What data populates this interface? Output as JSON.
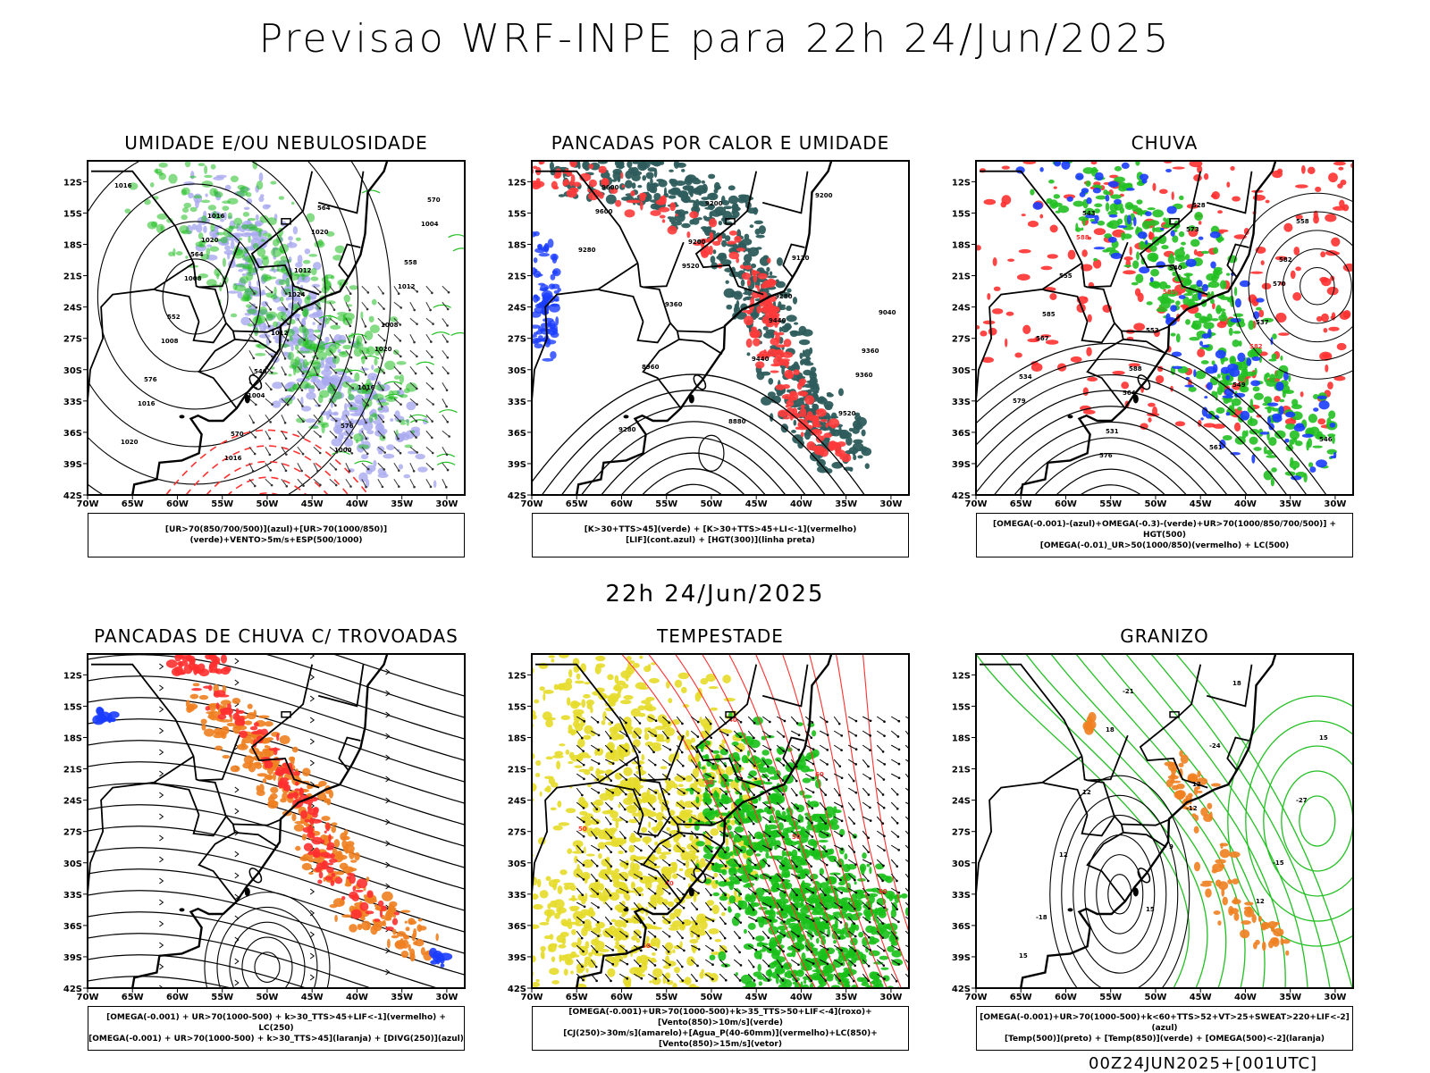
{
  "header": {
    "main_title": "Previsao WRF-INPE  para 22h 24/Jun/2025",
    "middle_title": "22h 24/Jun/2025",
    "footer": "00Z24JUN2025+[001UTC]"
  },
  "axes": {
    "lat_labels": [
      "12S",
      "15S",
      "18S",
      "21S",
      "24S",
      "27S",
      "30S",
      "33S",
      "36S",
      "39S",
      "42S"
    ],
    "lon_labels": [
      "70W",
      "65W",
      "60W",
      "55W",
      "50W",
      "45W",
      "40W",
      "35W",
      "30W"
    ],
    "lat_range": [
      -42,
      -10
    ],
    "lon_range": [
      -70,
      -28
    ]
  },
  "chart_data": [
    {
      "type": "map",
      "title": "UMIDADE E/OU NEBULOSIDADE",
      "legend": [
        "[UR>70(850/700/500)](azul)+[UR>70(1000/850)](verde)+VENTO>5m/s+ESP(500/1000)"
      ],
      "contour_labels": [
        "1016",
        "1020",
        "1024",
        "1020",
        "1016",
        "1016",
        "1020",
        "1012",
        "1008",
        "1004",
        "1000",
        "1004",
        "1008",
        "1012",
        "1016",
        "1020",
        "1016",
        "1012",
        "1008",
        "576",
        "570",
        "564",
        "558",
        "552",
        "546",
        "576",
        "570",
        "564"
      ],
      "colors": {
        "blue_fill": "#a9a9f0",
        "green": "#22c022",
        "red": "#ff3030"
      }
    },
    {
      "type": "map",
      "title": "PANCADAS POR CALOR E UMIDADE",
      "legend": [
        "[K>30+TTS>45](verde) + [K>30+TTS>45+LI<-1](vermelho)",
        "[LIF](cont.azul) + [HGT(300)](linha preta)"
      ],
      "contour_labels": [
        "9600",
        "9520",
        "9440",
        "9360",
        "9280",
        "9200",
        "9120",
        "9040",
        "8960",
        "8880",
        "9200",
        "9280",
        "9360",
        "9440",
        "9520",
        "9600",
        "9200",
        "9280",
        "9360"
      ],
      "colors": {
        "teal_fill": "#2e5c5c",
        "red_fill": "#ff3a3a",
        "blue": "#1a3cff"
      }
    },
    {
      "type": "map",
      "title": "CHUVA",
      "legend": [
        "[OMEGA(-0.001)-(azul)+OMEGA(-0.3)-(verde)+UR>70(1000/850/700/500)] + HGT(500)",
        "[OMEGA(-0.01)_UR>50(1000/850)(vermelho) + LC(500)"
      ],
      "contour_labels": [
        "588",
        "585",
        "582",
        "579",
        "576",
        "573",
        "570",
        "567",
        "564",
        "561",
        "558",
        "555",
        "552",
        "549",
        "546",
        "543",
        "540",
        "537",
        "534",
        "531",
        "528",
        "582",
        "585",
        "588"
      ],
      "colors": {
        "red_fill": "#ff3030",
        "green_fill": "#22c022",
        "blue": "#1a3cff"
      }
    },
    {
      "type": "map",
      "title": "PANCADAS DE CHUVA C/ TROVOADAS",
      "legend": [
        "[OMEGA(-0.001) + UR>70(1000-500) + k>30_TTS>45+LIF<-1](vermelho) + LC(250)",
        "[OMEGA(-0.001) + UR>70(1000-500) + k>30_TTS>45](laranja) + [DIVG(250)](azul)"
      ],
      "colors": {
        "red_fill": "#ff3030",
        "orange_fill": "#f08020",
        "blue": "#1a3cff"
      }
    },
    {
      "type": "map",
      "title": "TEMPESTADE",
      "legend": [
        "[OMEGA(-0.001)+UR>70(1000-500)+k>35_TTS>50+LIF<-4](roxo)+[Vento(850)>10m/s](verde)",
        "[CJ(250)>30m/s](amarelo)+[Agua_P(40-60mm)](vermelho)+LC(850)+[Vento(850)>15m/s](vetor)"
      ],
      "contour_labels": [
        "40",
        "50",
        "60",
        "50",
        "40",
        "60",
        "50",
        "40"
      ],
      "colors": {
        "yellow_fill": "#e6dc2a",
        "green_fill": "#18c018",
        "red": "#ff3030"
      }
    },
    {
      "type": "map",
      "title": "GRANIZO",
      "legend": [
        "[OMEGA(-0.001)+UR>70(1000-500)+k<60+TTS>52+VT>25+SWEAT>220+LIF<-2](azul)",
        "[Temp(500)](preto) + [Temp(850)](verde) + [OMEGA(500)<-2](laranja)"
      ],
      "contour_labels": [
        "-12",
        "-15",
        "-18",
        "-21",
        "-24",
        "-27",
        "12",
        "15",
        "18",
        "15",
        "12",
        "9",
        "12",
        "15",
        "18",
        "12"
      ],
      "colors": {
        "green": "#22c022",
        "orange_fill": "#f08020"
      }
    }
  ]
}
